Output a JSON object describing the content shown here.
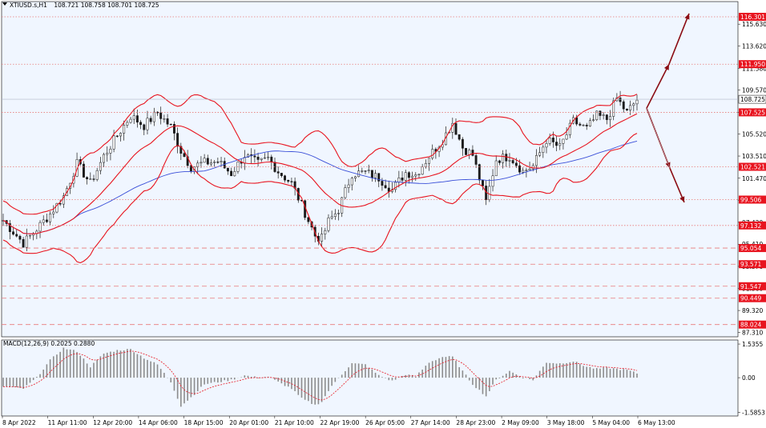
{
  "header": {
    "symbol": "XTIUSD.s,H1",
    "ohlc": "108.721 108.758 108.701 108.725"
  },
  "macd": {
    "label": "MACD(12,26,9) 0.2025 0.2880",
    "ticks": [
      "1.5355",
      "0.00",
      "-1.5853"
    ]
  },
  "price_ticks": [
    "115.630",
    "113.620",
    "111.580",
    "109.570",
    "107.530",
    "105.520",
    "103.510",
    "101.470",
    "99.460",
    "97.420",
    "95.410",
    "93.370",
    "91.360",
    "89.320",
    "87.310"
  ],
  "time_ticks": [
    "8 Apr 2022",
    "11 Apr 11:00",
    "12 Apr 20:00",
    "14 Apr 06:00",
    "18 Apr 15:00",
    "20 Apr 01:00",
    "21 Apr 10:00",
    "22 Apr 19:00",
    "26 Apr 05:00",
    "27 Apr 14:00",
    "28 Apr 23:00",
    "2 May 09:00",
    "3 May 18:00",
    "5 May 04:00",
    "6 May 13:00"
  ],
  "levels": [
    {
      "value": 116.301,
      "label": "116.301",
      "style": "dotted"
    },
    {
      "value": 111.95,
      "label": "111.950",
      "style": "dotted"
    },
    {
      "value": 108.725,
      "label": "108.725",
      "style": "current"
    },
    {
      "value": 107.525,
      "label": "107.525",
      "style": "dotted"
    },
    {
      "value": 102.521,
      "label": "102.521",
      "style": "dotted"
    },
    {
      "value": 99.506,
      "label": "99.506",
      "style": "dotted"
    },
    {
      "value": 97.132,
      "label": "97.132",
      "style": "dotted"
    },
    {
      "value": 95.054,
      "label": "95.054",
      "style": "dashed"
    },
    {
      "value": 93.571,
      "label": "93.571",
      "style": "dashed"
    },
    {
      "value": 91.547,
      "label": "91.547",
      "style": "dashed"
    },
    {
      "value": 90.449,
      "label": "90.449",
      "style": "dashed"
    },
    {
      "value": 88.024,
      "label": "88.024",
      "style": "dashed"
    }
  ],
  "colors": {
    "background": "#f0f6ff",
    "grid": "#ffffff",
    "candle": "#1a1a1a",
    "bollinger": "#e8141f",
    "moving_average": "#3a4fd8",
    "level_line": "#e87a7a",
    "level_tag": "#e8141f",
    "arrow": "#8b0d14",
    "macd_hist": "#8c8c8c",
    "macd_signal": "#e8141f"
  },
  "chart_data": {
    "type": "candlestick",
    "ylim": [
      86.9,
      117.7
    ],
    "macd_ylim": [
      -1.75,
      1.72
    ],
    "close_path": [
      [
        0,
        97.6
      ],
      [
        6,
        95.5
      ],
      [
        10,
        96.8
      ],
      [
        14,
        98.2
      ],
      [
        18,
        99.8
      ],
      [
        22,
        102.8
      ],
      [
        26,
        101.0
      ],
      [
        30,
        103.5
      ],
      [
        34,
        105.4
      ],
      [
        38,
        107.2
      ],
      [
        42,
        106.3
      ],
      [
        46,
        107.5
      ],
      [
        50,
        106.2
      ],
      [
        53,
        104.0
      ],
      [
        56,
        102.5
      ],
      [
        60,
        102.9
      ],
      [
        64,
        103.0
      ],
      [
        68,
        101.9
      ],
      [
        72,
        103.6
      ],
      [
        76,
        102.8
      ],
      [
        79,
        103.3
      ],
      [
        82,
        102.1
      ],
      [
        86,
        101.0
      ],
      [
        89,
        99.0
      ],
      [
        93,
        96.2
      ],
      [
        95,
        95.9
      ],
      [
        97,
        97.5
      ],
      [
        100,
        98.6
      ],
      [
        104,
        101.9
      ],
      [
        108,
        102.0
      ],
      [
        112,
        101.5
      ],
      [
        116,
        100.4
      ],
      [
        120,
        102.0
      ],
      [
        123,
        101.8
      ],
      [
        127,
        103.5
      ],
      [
        131,
        105.0
      ],
      [
        134,
        106.6
      ],
      [
        137,
        104.3
      ],
      [
        140,
        103.6
      ],
      [
        144,
        99.3
      ],
      [
        147,
        103.2
      ],
      [
        151,
        103.5
      ],
      [
        155,
        102.1
      ],
      [
        158,
        102.6
      ],
      [
        162,
        105.0
      ],
      [
        166,
        104.3
      ],
      [
        170,
        106.7
      ],
      [
        174,
        106.0
      ],
      [
        177,
        107.2
      ],
      [
        180,
        106.9
      ],
      [
        183,
        108.8
      ],
      [
        186,
        107.5
      ],
      [
        189,
        108.7
      ]
    ],
    "macd_hist": [
      [
        0,
        -0.4
      ],
      [
        6,
        -0.5
      ],
      [
        10,
        0.0
      ],
      [
        14,
        0.8
      ],
      [
        18,
        1.35
      ],
      [
        22,
        1.2
      ],
      [
        26,
        0.5
      ],
      [
        30,
        1.1
      ],
      [
        34,
        1.25
      ],
      [
        38,
        1.3
      ],
      [
        42,
        0.9
      ],
      [
        46,
        0.6
      ],
      [
        50,
        -0.2
      ],
      [
        53,
        -1.3
      ],
      [
        56,
        -0.9
      ],
      [
        60,
        -0.3
      ],
      [
        64,
        -0.2
      ],
      [
        68,
        -0.1
      ],
      [
        72,
        0.1
      ],
      [
        76,
        0.0
      ],
      [
        79,
        0.05
      ],
      [
        82,
        -0.2
      ],
      [
        86,
        -0.5
      ],
      [
        89,
        -0.95
      ],
      [
        93,
        -1.25
      ],
      [
        95,
        -1.1
      ],
      [
        97,
        -0.6
      ],
      [
        100,
        0.0
      ],
      [
        104,
        0.65
      ],
      [
        108,
        0.6
      ],
      [
        112,
        0.1
      ],
      [
        116,
        -0.15
      ],
      [
        120,
        0.15
      ],
      [
        123,
        0.05
      ],
      [
        127,
        0.7
      ],
      [
        131,
        0.95
      ],
      [
        134,
        0.95
      ],
      [
        137,
        0.3
      ],
      [
        140,
        -0.3
      ],
      [
        144,
        -0.85
      ],
      [
        147,
        -0.1
      ],
      [
        151,
        0.3
      ],
      [
        155,
        0.0
      ],
      [
        158,
        -0.1
      ],
      [
        162,
        0.7
      ],
      [
        166,
        0.65
      ],
      [
        170,
        0.75
      ],
      [
        174,
        0.5
      ],
      [
        177,
        0.4
      ],
      [
        180,
        0.45
      ],
      [
        183,
        0.4
      ],
      [
        186,
        0.35
      ],
      [
        189,
        0.2
      ]
    ]
  }
}
